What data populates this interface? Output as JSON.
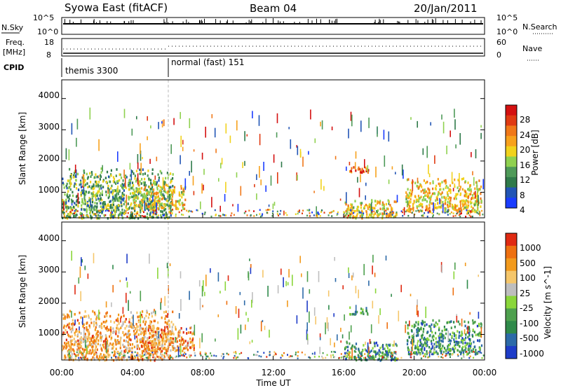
{
  "header": {
    "station": "Syowa East (fitACF)",
    "beam": "Beam 04",
    "date": "20/Jan/2011"
  },
  "strip_panels": {
    "nsky_label": "N.Sky",
    "nsearch_label": "N.Search",
    "nsky_ticks": [
      "10^5",
      "10^0"
    ],
    "nsearch_ticks": [
      "10^5",
      "10^0"
    ],
    "freq_label_top": "Freq.",
    "freq_label_bottom": "[MHz]",
    "freq_ticks": [
      "18",
      "8"
    ],
    "nave_label": "Nave",
    "nave_ticks": [
      "60",
      "0"
    ],
    "cpid_label": "CPID",
    "cpid_modes": [
      {
        "name": "themis 3300",
        "start_hour": 0
      },
      {
        "name": "normal (fast) 151",
        "start_hour": 6
      }
    ]
  },
  "chart_data": [
    {
      "type": "heatmap",
      "name": "power",
      "ylabel": "Slant Range [km]",
      "xlabel": "",
      "xlim_hours": [
        0,
        24
      ],
      "ylim": [
        180,
        4600
      ],
      "yticks": [
        "1000",
        "2000",
        "3000",
        "4000"
      ],
      "colorbar_label": "Power [dB]",
      "colorbar_ticks": [
        "28",
        "24",
        "20",
        "16",
        "12",
        "8",
        "4"
      ],
      "colors": [
        "#1a3cff",
        "#2255b5",
        "#2f7a4a",
        "#4e9a58",
        "#8fd14f",
        "#f1d21c",
        "#f7a11c",
        "#f07818",
        "#e03a12",
        "#d41010"
      ],
      "regions": [
        {
          "t0": 0.0,
          "t1": 6.3,
          "r0": 200,
          "r1": 1800,
          "intensity": 0.35
        },
        {
          "t0": 4.0,
          "t1": 7.0,
          "r0": 500,
          "r1": 1300,
          "intensity": 0.55
        },
        {
          "t0": 16.3,
          "t1": 17.4,
          "r0": 1650,
          "r1": 1900,
          "intensity": 0.85
        },
        {
          "t0": 16.0,
          "t1": 19.0,
          "r0": 200,
          "r1": 800,
          "intensity": 0.6
        },
        {
          "t0": 19.5,
          "t1": 23.8,
          "r0": 400,
          "r1": 1500,
          "intensity": 0.6
        }
      ]
    },
    {
      "type": "heatmap",
      "name": "velocity",
      "ylabel": "Slant Range [km]",
      "xlabel": "Time UT",
      "xlim_hours": [
        0,
        24
      ],
      "ylim": [
        180,
        4600
      ],
      "yticks": [
        "1000",
        "2000",
        "3000",
        "4000"
      ],
      "xticks": [
        "00:00",
        "04:00",
        "08:00",
        "12:00",
        "16:00",
        "20:00",
        "00:00"
      ],
      "colorbar_label": "Velocity [m s^-1]",
      "colorbar_ticks": [
        "1000",
        "500",
        "100",
        "25",
        "-25",
        "-100",
        "-500",
        "-1000"
      ],
      "colors": [
        "#1e3cc8",
        "#2c6aa8",
        "#2f8a4a",
        "#4ea04e",
        "#8ad63a",
        "#bebebe",
        "#f5c66a",
        "#f29a1c",
        "#ee7010",
        "#e02a12"
      ],
      "regions": [
        {
          "t0": 0.0,
          "t1": 6.3,
          "r0": 200,
          "r1": 1800,
          "intensity": 0.75
        },
        {
          "t0": 4.5,
          "t1": 7.5,
          "r0": 500,
          "r1": 1300,
          "intensity": 0.78
        },
        {
          "t0": 16.3,
          "t1": 17.4,
          "r0": 1650,
          "r1": 1900,
          "intensity": 0.3
        },
        {
          "t0": 16.0,
          "t1": 19.0,
          "r0": 200,
          "r1": 800,
          "intensity": 0.25
        },
        {
          "t0": 19.5,
          "t1": 23.8,
          "r0": 400,
          "r1": 1500,
          "intensity": 0.25
        }
      ]
    }
  ]
}
